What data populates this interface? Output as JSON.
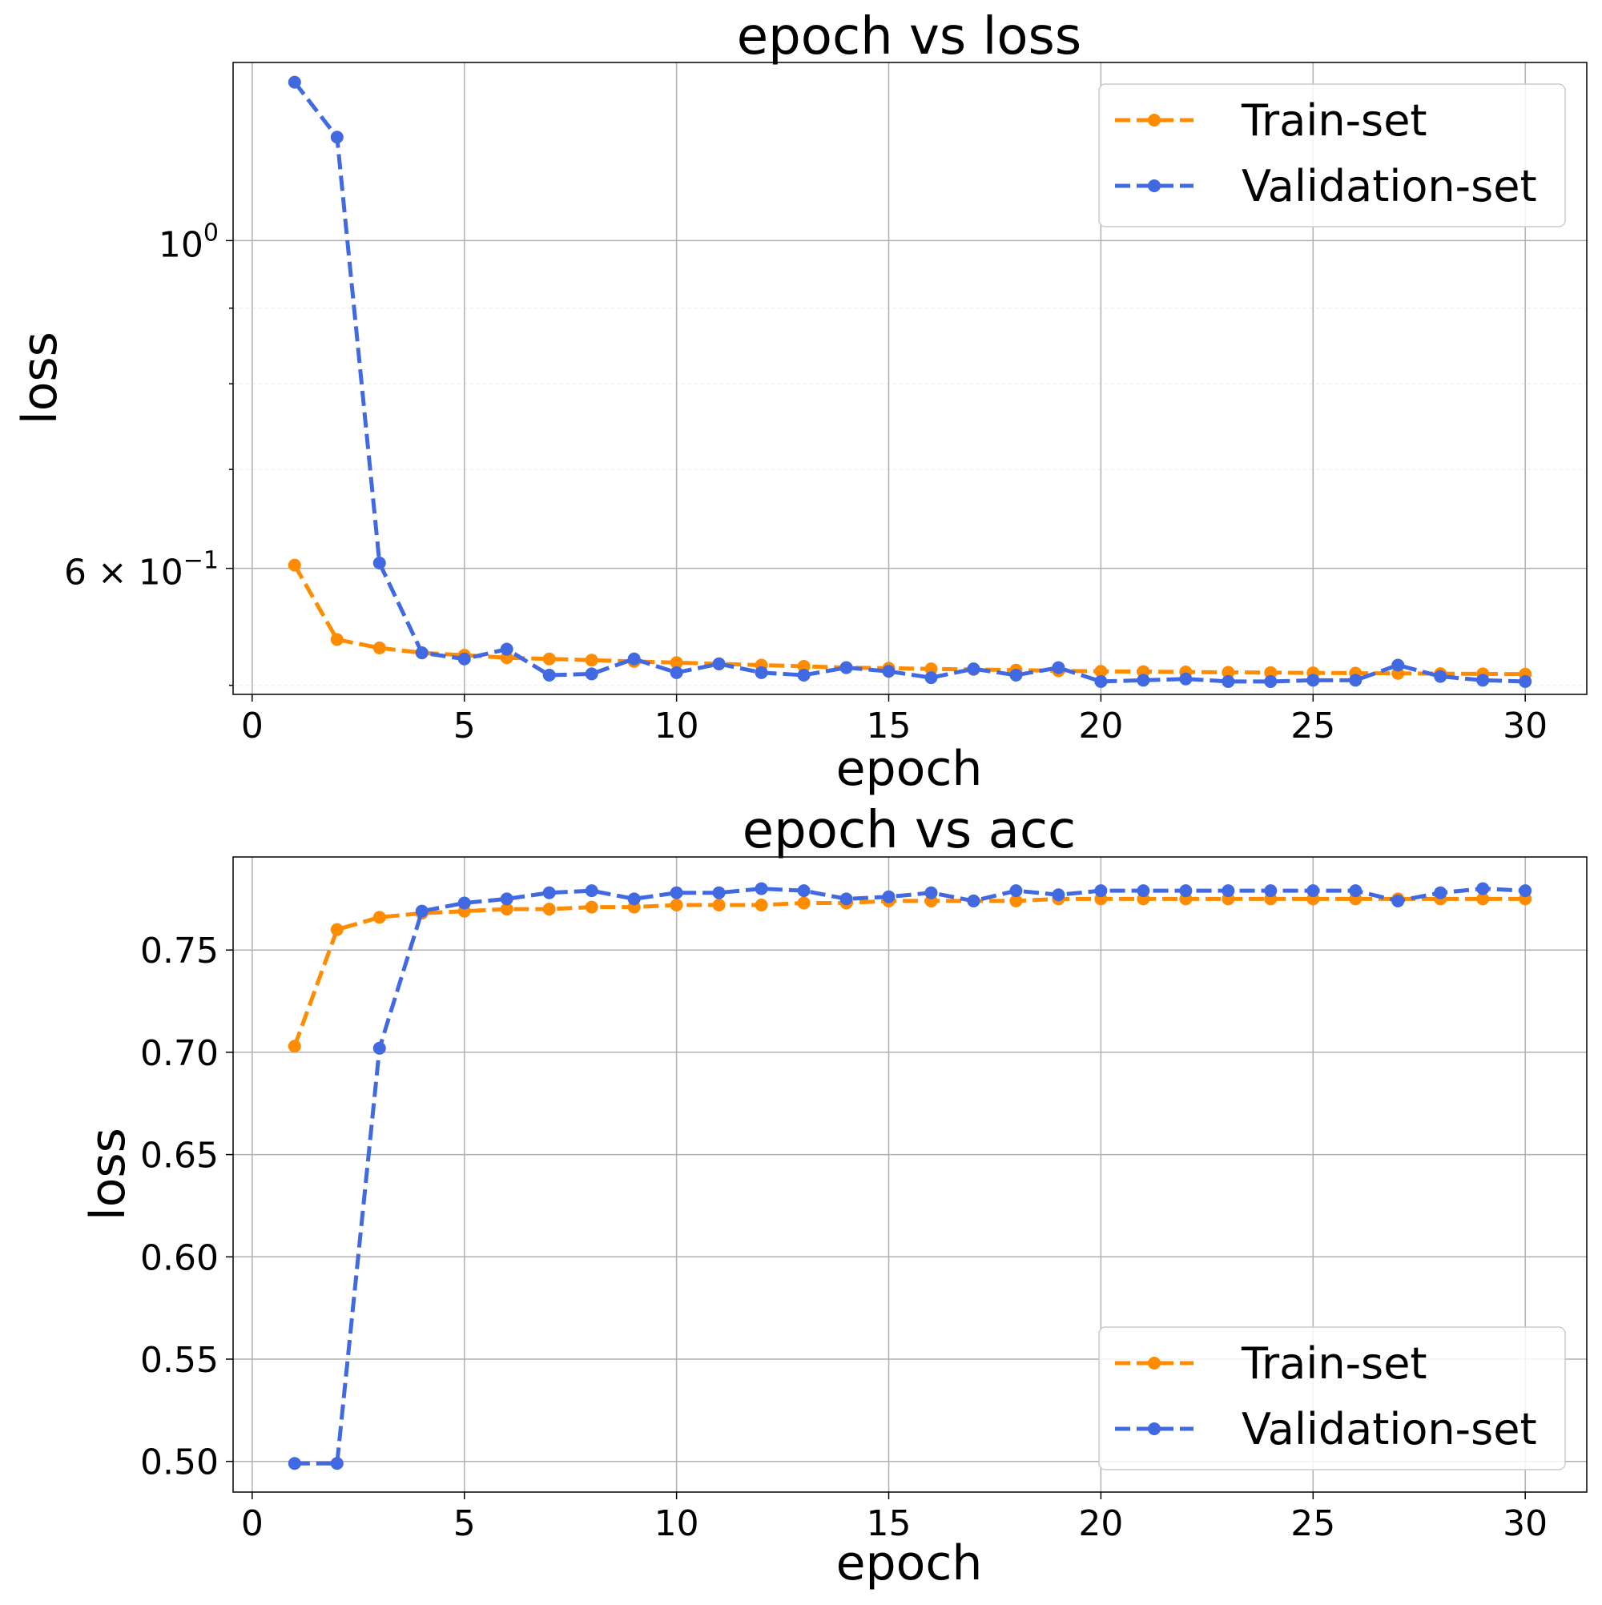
{
  "colors": {
    "train": "#ff8c00",
    "validation": "#4169e1"
  },
  "chart_data": [
    {
      "type": "line",
      "title": "epoch vs loss",
      "xlabel": "epoch",
      "ylabel": "loss",
      "yscale": "log",
      "xlim": [
        -0.45,
        31.45
      ],
      "ylim": [
        0.493,
        1.32
      ],
      "xticks": [
        0,
        5,
        10,
        15,
        20,
        25,
        30
      ],
      "yticks": [
        {
          "value": 1.0,
          "base": "10",
          "exp": "0"
        },
        {
          "value": 0.6,
          "base": "6 × 10",
          "exp": "−1"
        }
      ],
      "yminor": [
        0.5,
        0.7,
        0.8,
        0.9
      ],
      "grid": true,
      "legend_position": "top-right",
      "x": [
        1,
        2,
        3,
        4,
        5,
        6,
        7,
        8,
        9,
        10,
        11,
        12,
        13,
        14,
        15,
        16,
        17,
        18,
        19,
        20,
        21,
        22,
        23,
        24,
        25,
        26,
        27,
        28,
        29,
        30
      ],
      "series": [
        {
          "name": "Train-set",
          "color": "#ff8c00",
          "values": [
            0.603,
            0.537,
            0.53,
            0.526,
            0.524,
            0.522,
            0.521,
            0.52,
            0.519,
            0.518,
            0.517,
            0.516,
            0.515,
            0.514,
            0.5135,
            0.513,
            0.5125,
            0.512,
            0.5115,
            0.511,
            0.5108,
            0.5105,
            0.5102,
            0.51,
            0.5098,
            0.5096,
            0.5094,
            0.5092,
            0.509,
            0.5088
          ]
        },
        {
          "name": "Validation-set",
          "color": "#4169e1",
          "values": [
            1.28,
            1.175,
            0.605,
            0.526,
            0.521,
            0.529,
            0.508,
            0.509,
            0.521,
            0.51,
            0.517,
            0.51,
            0.508,
            0.514,
            0.511,
            0.506,
            0.513,
            0.508,
            0.514,
            0.503,
            0.504,
            0.505,
            0.503,
            0.503,
            0.504,
            0.504,
            0.516,
            0.507,
            0.504,
            0.503
          ]
        }
      ]
    },
    {
      "type": "line",
      "title": "epoch vs acc",
      "xlabel": "epoch",
      "ylabel": "loss",
      "xlim": [
        -0.45,
        31.45
      ],
      "ylim": [
        0.485,
        0.7955
      ],
      "xticks": [
        0,
        5,
        10,
        15,
        20,
        25,
        30
      ],
      "yticks": [
        0.5,
        0.55,
        0.6,
        0.65,
        0.7,
        0.75
      ],
      "ytick_labels": [
        "0.50",
        "0.55",
        "0.60",
        "0.65",
        "0.70",
        "0.75"
      ],
      "grid": true,
      "legend_position": "bottom-right",
      "x": [
        1,
        2,
        3,
        4,
        5,
        6,
        7,
        8,
        9,
        10,
        11,
        12,
        13,
        14,
        15,
        16,
        17,
        18,
        19,
        20,
        21,
        22,
        23,
        24,
        25,
        26,
        27,
        28,
        29,
        30
      ],
      "series": [
        {
          "name": "Train-set",
          "color": "#ff8c00",
          "values": [
            0.703,
            0.76,
            0.766,
            0.768,
            0.769,
            0.77,
            0.77,
            0.771,
            0.771,
            0.772,
            0.772,
            0.772,
            0.773,
            0.773,
            0.774,
            0.774,
            0.774,
            0.774,
            0.775,
            0.775,
            0.775,
            0.775,
            0.775,
            0.775,
            0.775,
            0.775,
            0.775,
            0.775,
            0.775,
            0.775
          ]
        },
        {
          "name": "Validation-set",
          "color": "#4169e1",
          "values": [
            0.499,
            0.499,
            0.702,
            0.769,
            0.773,
            0.775,
            0.778,
            0.779,
            0.775,
            0.778,
            0.778,
            0.78,
            0.779,
            0.775,
            0.776,
            0.778,
            0.774,
            0.779,
            0.777,
            0.779,
            0.779,
            0.779,
            0.779,
            0.779,
            0.779,
            0.779,
            0.774,
            0.778,
            0.78,
            0.779
          ]
        }
      ]
    }
  ]
}
